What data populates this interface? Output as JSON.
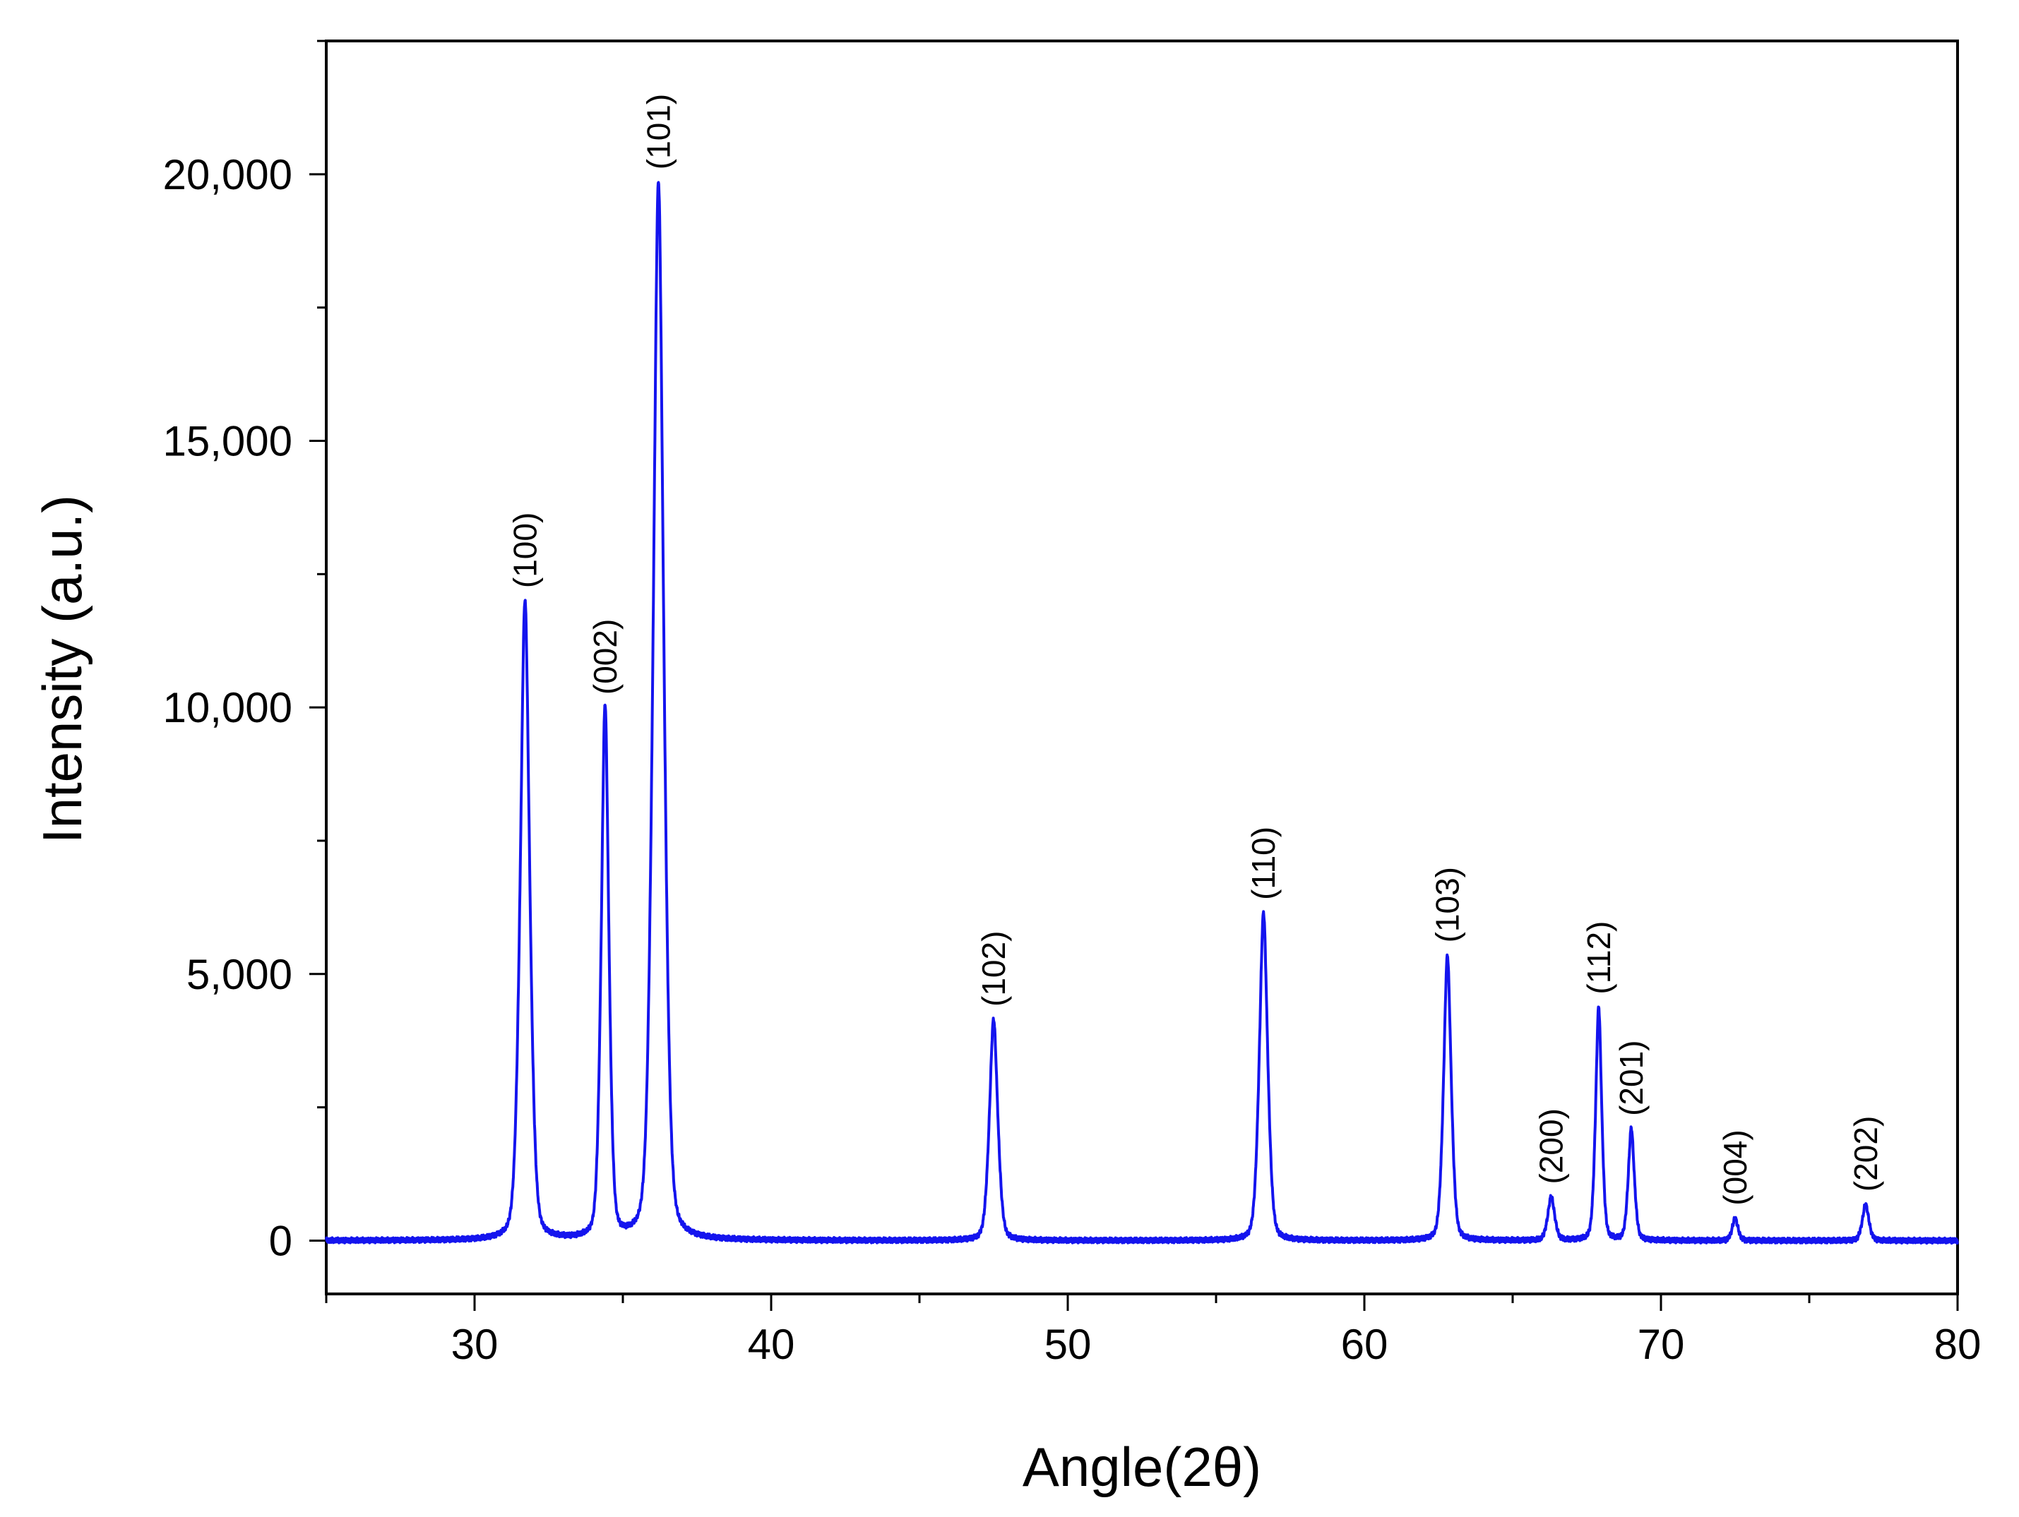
{
  "chart_data": {
    "type": "line",
    "title": "",
    "xlabel": "Angle(2θ)",
    "ylabel": "Intensity (a.u.)",
    "xlim": [
      25,
      80
    ],
    "ylim": [
      -1000,
      22500
    ],
    "x_ticks": [
      {
        "value": 30,
        "label": "30"
      },
      {
        "value": 40,
        "label": "40"
      },
      {
        "value": 50,
        "label": "50"
      },
      {
        "value": 60,
        "label": "60"
      },
      {
        "value": 70,
        "label": "70"
      },
      {
        "value": 80,
        "label": "80"
      }
    ],
    "y_ticks": [
      {
        "value": 0,
        "label": "0"
      },
      {
        "value": 5000,
        "label": "5,000"
      },
      {
        "value": 10000,
        "label": "10,000"
      },
      {
        "value": 15000,
        "label": "15,000"
      },
      {
        "value": 20000,
        "label": "20,000"
      }
    ],
    "x_minor_step": 5,
    "y_minor_step": 2500,
    "grid": false,
    "legend": "none",
    "series_color": "#1414ee",
    "peaks": [
      {
        "label": "(100)",
        "x": 31.7,
        "y": 12000
      },
      {
        "label": "(002)",
        "x": 34.4,
        "y": 10000
      },
      {
        "label": "(101)",
        "x": 36.2,
        "y": 19850
      },
      {
        "label": "(102)",
        "x": 47.5,
        "y": 4150
      },
      {
        "label": "(110)",
        "x": 56.6,
        "y": 6150
      },
      {
        "label": "(103)",
        "x": 62.8,
        "y": 5350
      },
      {
        "label": "(200)",
        "x": 66.3,
        "y": 820
      },
      {
        "label": "(112)",
        "x": 67.9,
        "y": 4380
      },
      {
        "label": "(201)",
        "x": 69.0,
        "y": 2100
      },
      {
        "label": "(004)",
        "x": 72.5,
        "y": 420
      },
      {
        "label": "(202)",
        "x": 76.9,
        "y": 680
      }
    ]
  }
}
